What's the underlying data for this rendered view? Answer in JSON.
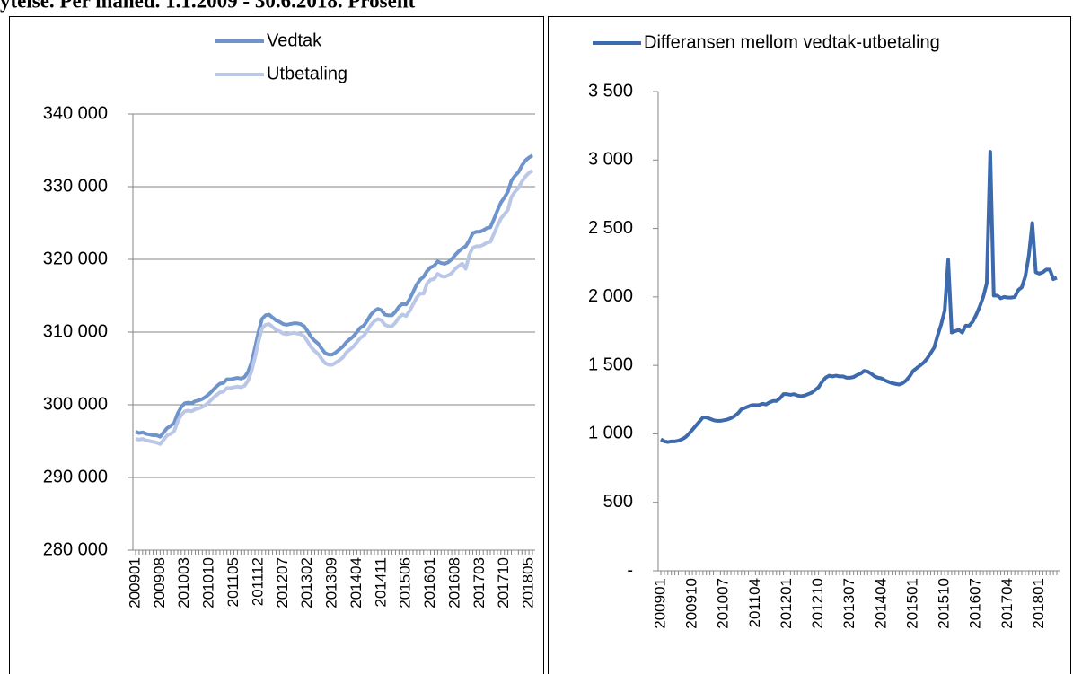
{
  "header": {
    "title": "ytelse. Per måned. 1.1.2009 - 30.6.2018. Prosent"
  },
  "chart_data": [
    {
      "type": "line",
      "legend": "top",
      "grid": true,
      "categories": [
        "200901",
        null,
        null,
        null,
        null,
        null,
        null,
        "200908",
        null,
        null,
        null,
        null,
        null,
        null,
        "201003",
        null,
        null,
        null,
        null,
        null,
        null,
        "201010",
        null,
        null,
        null,
        null,
        null,
        null,
        "201105",
        null,
        null,
        null,
        null,
        null,
        null,
        "201112",
        null,
        null,
        null,
        null,
        null,
        null,
        "201207",
        null,
        null,
        null,
        null,
        null,
        null,
        "201302",
        null,
        null,
        null,
        null,
        null,
        null,
        "201309",
        null,
        null,
        null,
        null,
        null,
        null,
        "201404",
        null,
        null,
        null,
        null,
        null,
        null,
        "201411",
        null,
        null,
        null,
        null,
        null,
        null,
        "201506",
        null,
        null,
        null,
        null,
        null,
        null,
        "201601",
        null,
        null,
        null,
        null,
        null,
        null,
        "201608",
        null,
        null,
        null,
        null,
        null,
        null,
        "201703",
        null,
        null,
        null,
        null,
        null,
        null,
        "201710",
        null,
        null,
        null,
        null,
        null,
        null,
        "201805",
        null
      ],
      "ylim": [
        280000,
        340000
      ],
      "yticks": [
        {
          "value": 280000,
          "label": "280 000"
        },
        {
          "value": 290000,
          "label": "290 000"
        },
        {
          "value": 300000,
          "label": "300 000"
        },
        {
          "value": 310000,
          "label": "310 000"
        },
        {
          "value": 320000,
          "label": "320 000"
        },
        {
          "value": 330000,
          "label": "330 000"
        },
        {
          "value": 340000,
          "label": "340 000"
        }
      ],
      "series": [
        {
          "name": "Vedtak",
          "color": "#6f93cb",
          "values": [
            296300,
            296100,
            296200,
            296000,
            295900,
            295800,
            295800,
            295600,
            296200,
            296800,
            297100,
            297500,
            298800,
            299700,
            300200,
            300300,
            300200,
            300500,
            300600,
            300800,
            301100,
            301500,
            302000,
            302500,
            302900,
            303000,
            303500,
            303500,
            303600,
            303700,
            303600,
            303800,
            304500,
            305800,
            307800,
            310000,
            311800,
            312300,
            312400,
            312000,
            311600,
            311400,
            311100,
            311000,
            311100,
            311200,
            311200,
            311100,
            310800,
            310100,
            309300,
            308800,
            308400,
            307700,
            307100,
            306900,
            306900,
            307200,
            307600,
            308000,
            308600,
            309000,
            309400,
            310000,
            310600,
            310900,
            311600,
            312400,
            312900,
            313200,
            313000,
            312400,
            312300,
            312300,
            312800,
            313500,
            313900,
            313800,
            314500,
            315500,
            316500,
            317200,
            317600,
            318400,
            318900,
            319100,
            319700,
            319500,
            319400,
            319600,
            320000,
            320600,
            321100,
            321500,
            321800,
            322600,
            323600,
            323800,
            323800,
            324000,
            324300,
            324400,
            325500,
            326700,
            327800,
            328500,
            329300,
            330800,
            331500,
            332000,
            332900,
            333600,
            334000,
            334300
          ]
        },
        {
          "name": "Utbetaling",
          "color": "#bac7e6",
          "values": [
            295300,
            295200,
            295300,
            295100,
            295000,
            294900,
            294800,
            294600,
            295200,
            295800,
            296000,
            296400,
            297700,
            298600,
            299100,
            299200,
            299100,
            299400,
            299500,
            299700,
            300000,
            300400,
            300900,
            301300,
            301700,
            301800,
            302300,
            302300,
            302400,
            302500,
            302400,
            302600,
            303300,
            304600,
            306500,
            308700,
            310500,
            311000,
            311100,
            310700,
            310300,
            310100,
            309800,
            309700,
            309800,
            309900,
            309800,
            309700,
            309400,
            308700,
            307900,
            307400,
            307000,
            306300,
            305700,
            305500,
            305500,
            305800,
            306100,
            306500,
            307200,
            307600,
            308000,
            308600,
            309200,
            309500,
            310200,
            311000,
            311500,
            311800,
            311600,
            311000,
            310800,
            310800,
            311300,
            312000,
            312400,
            312200,
            312900,
            313800,
            314700,
            315300,
            315300,
            316700,
            317200,
            317300,
            318000,
            317700,
            317600,
            317800,
            318100,
            318700,
            319100,
            319400,
            318700,
            320600,
            321600,
            321800,
            321800,
            322000,
            322300,
            322400,
            323500,
            324600,
            325600,
            326200,
            326800,
            328600,
            329300,
            329800,
            330700,
            331400,
            331900,
            332200
          ]
        }
      ]
    },
    {
      "type": "line",
      "legend": "top",
      "grid": false,
      "categories": [
        "200901",
        null,
        null,
        null,
        null,
        null,
        null,
        null,
        null,
        "200910",
        null,
        null,
        null,
        null,
        null,
        null,
        null,
        null,
        "201007",
        null,
        null,
        null,
        null,
        null,
        null,
        null,
        null,
        "201104",
        null,
        null,
        null,
        null,
        null,
        null,
        null,
        null,
        "201201",
        null,
        null,
        null,
        null,
        null,
        null,
        null,
        null,
        "201210",
        null,
        null,
        null,
        null,
        null,
        null,
        null,
        null,
        "201307",
        null,
        null,
        null,
        null,
        null,
        null,
        null,
        null,
        "201404",
        null,
        null,
        null,
        null,
        null,
        null,
        null,
        null,
        "201501",
        null,
        null,
        null,
        null,
        null,
        null,
        null,
        null,
        "201510",
        null,
        null,
        null,
        null,
        null,
        null,
        null,
        null,
        "201607",
        null,
        null,
        null,
        null,
        null,
        null,
        null,
        null,
        "201704",
        null,
        null,
        null,
        null,
        null,
        null,
        null,
        null,
        "201801",
        null,
        null,
        null,
        null,
        null
      ],
      "ylim": [
        0,
        3500
      ],
      "yticks": [
        {
          "value": 0,
          "label": "-"
        },
        500,
        {
          "value": 1000,
          "label": "1 000"
        },
        {
          "value": 1500,
          "label": "1 500"
        },
        {
          "value": 2000,
          "label": "2 000"
        },
        {
          "value": 2500,
          "label": "2 500"
        },
        {
          "value": 3000,
          "label": "3 000"
        },
        {
          "value": 3500,
          "label": "3 500"
        }
      ],
      "series": [
        {
          "name": "Differansen mellom vedtak-utbetaling",
          "color": "#3d69ad",
          "values": [
            960,
            945,
            940,
            945,
            945,
            950,
            960,
            975,
            1000,
            1030,
            1060,
            1090,
            1120,
            1120,
            1110,
            1100,
            1095,
            1095,
            1100,
            1105,
            1115,
            1130,
            1150,
            1180,
            1190,
            1200,
            1210,
            1210,
            1210,
            1220,
            1215,
            1230,
            1240,
            1240,
            1260,
            1290,
            1290,
            1285,
            1290,
            1280,
            1275,
            1280,
            1290,
            1300,
            1320,
            1340,
            1380,
            1410,
            1425,
            1420,
            1425,
            1420,
            1420,
            1410,
            1410,
            1415,
            1430,
            1440,
            1460,
            1455,
            1440,
            1420,
            1410,
            1405,
            1390,
            1380,
            1370,
            1365,
            1360,
            1370,
            1390,
            1420,
            1460,
            1480,
            1500,
            1520,
            1550,
            1590,
            1630,
            1720,
            1800,
            1900,
            2270,
            1740,
            1750,
            1760,
            1740,
            1790,
            1790,
            1820,
            1870,
            1930,
            2000,
            2100,
            3060,
            2010,
            2010,
            1990,
            2000,
            1995,
            1995,
            2000,
            2050,
            2070,
            2150,
            2300,
            2540,
            2180,
            2170,
            2180,
            2200,
            2200,
            2130,
            2140
          ]
        }
      ]
    }
  ]
}
